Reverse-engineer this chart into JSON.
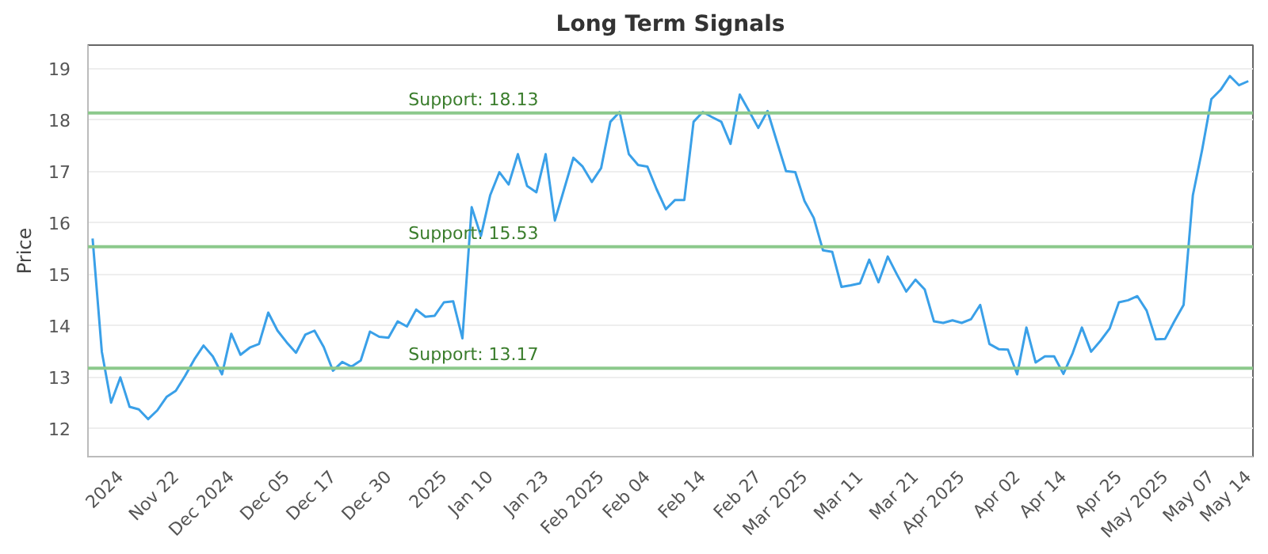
{
  "chart_data": {
    "type": "line",
    "title": "Long Term Signals",
    "ylabel": "Price",
    "categories": [
      null,
      null,
      null,
      "2024",
      null,
      null,
      null,
      null,
      null,
      "Nov 22",
      null,
      null,
      null,
      null,
      null,
      "Dec 2024",
      null,
      null,
      null,
      null,
      null,
      "Dec 05",
      null,
      null,
      null,
      null,
      "Dec 17",
      null,
      null,
      null,
      null,
      null,
      "Dec 30",
      null,
      null,
      null,
      null,
      null,
      "2025",
      null,
      null,
      null,
      null,
      "Jan 10",
      null,
      null,
      null,
      null,
      null,
      "Jan 23",
      null,
      null,
      null,
      null,
      null,
      "Feb 2025",
      null,
      null,
      null,
      null,
      "Feb 04",
      null,
      null,
      null,
      null,
      null,
      "Feb 14",
      null,
      null,
      null,
      null,
      null,
      "Feb 27",
      null,
      null,
      null,
      null,
      "Mar 2025",
      null,
      null,
      null,
      null,
      null,
      "Mar 11",
      null,
      null,
      null,
      null,
      null,
      "Mar 21",
      null,
      null,
      null,
      null,
      "Apr 2025",
      null,
      null,
      null,
      null,
      null,
      "Apr 02",
      null,
      null,
      null,
      null,
      "Apr 14",
      null,
      null,
      null,
      null,
      null,
      "Apr 25",
      null,
      null,
      null,
      null,
      "May 2025",
      null,
      null,
      null,
      null,
      "May 07",
      null,
      null,
      null,
      "May 14"
    ],
    "series": [
      {
        "color": "#3aa0e8",
        "values": [
          15.69,
          13.49,
          12.5,
          12.99,
          12.42,
          12.37,
          12.18,
          12.35,
          12.61,
          12.73,
          13.02,
          13.34,
          13.61,
          13.4,
          13.05,
          13.84,
          13.43,
          13.57,
          13.64,
          14.25,
          13.9,
          13.67,
          13.47,
          13.82,
          13.9,
          13.58,
          13.12,
          13.29,
          13.2,
          13.32,
          13.88,
          13.78,
          13.76,
          14.08,
          13.98,
          14.31,
          14.17,
          14.19,
          14.45,
          14.47,
          13.75,
          16.3,
          15.74,
          16.53,
          16.98,
          16.74,
          17.33,
          16.71,
          16.59,
          17.33,
          16.04,
          16.65,
          17.26,
          17.09,
          16.79,
          17.06,
          17.96,
          18.15,
          17.33,
          17.12,
          17.09,
          16.65,
          16.26,
          16.44,
          16.44,
          17.96,
          18.15,
          18.05,
          17.96,
          17.53,
          18.49,
          18.17,
          17.84,
          18.17,
          17.58,
          17.0,
          16.98,
          16.42,
          16.09,
          15.46,
          15.43,
          14.75,
          14.78,
          14.82,
          15.28,
          14.84,
          15.34,
          14.99,
          14.66,
          14.89,
          14.7,
          14.08,
          14.05,
          14.1,
          14.05,
          14.12,
          14.4,
          13.64,
          13.54,
          13.53,
          13.05,
          13.96,
          13.28,
          13.4,
          13.4,
          13.06,
          13.46,
          13.96,
          13.49,
          13.7,
          13.94,
          14.45,
          14.49,
          14.57,
          14.29,
          13.73,
          13.74,
          14.08,
          14.4,
          16.53,
          17.41,
          18.4,
          18.58,
          18.85,
          18.67,
          18.75
        ]
      }
    ],
    "ylim": [
      11.45,
      19.45
    ],
    "yticks": [
      12,
      13,
      14,
      15,
      16,
      17,
      18,
      19
    ],
    "grid": "y",
    "marker": "none",
    "line_style": "solid",
    "ref_lines": [
      {
        "axis": "y",
        "value": 18.13,
        "label": "Support: 18.13",
        "color": "#8cc98c"
      },
      {
        "axis": "y",
        "value": 15.53,
        "label": "Support: 15.53",
        "color": "#8cc98c"
      },
      {
        "axis": "y",
        "value": 13.17,
        "label": "Support: 13.17",
        "color": "#8cc98c"
      }
    ]
  }
}
